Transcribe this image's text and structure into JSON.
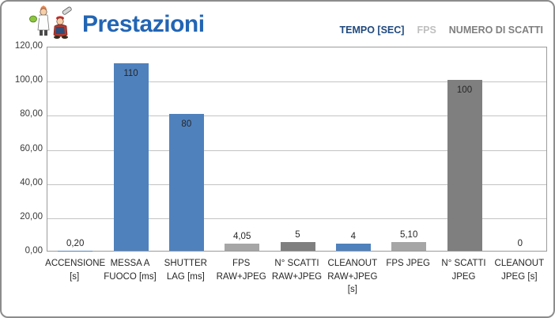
{
  "header": {
    "logo_name": "mascot-cartoon-logo",
    "title": "Prestazioni",
    "legend": [
      {
        "label": "TEMPO [SEC]",
        "color": "#1F497D"
      },
      {
        "label": "FPS",
        "color": "#BFBFBF"
      },
      {
        "label": "NUMERO DI SCATTI",
        "color": "#7F7F7F"
      }
    ]
  },
  "chart_data": {
    "type": "bar",
    "title": "Prestazioni",
    "categories": [
      "ACCENSIONE [s]",
      "MESSA A FUOCO [ms]",
      "SHUTTER LAG [ms]",
      "FPS RAW+JPEG",
      "N° SCATTI RAW+JPEG",
      "CLEANOUT RAW+JPEG [s]",
      "FPS JPEG",
      "N° SCATTI JPEG",
      "CLEANOUT JPEG [s]"
    ],
    "values": [
      0.2,
      110,
      80,
      4.05,
      5,
      4,
      5.1,
      100,
      0
    ],
    "value_labels": [
      "0,20",
      "110",
      "80",
      "4,05",
      "5",
      "4",
      "5,10",
      "100",
      "0"
    ],
    "bar_colors": [
      "#4F81BD",
      "#4F81BD",
      "#4F81BD",
      "#A6A6A6",
      "#7F7F7F",
      "#4F81BD",
      "#A6A6A6",
      "#7F7F7F",
      "#4F81BD"
    ],
    "series": [
      {
        "name": "TEMPO [SEC]",
        "color": "#4F81BD",
        "categories": [
          "ACCENSIONE [s]",
          "MESSA A FUOCO [ms]",
          "SHUTTER LAG [ms]",
          "CLEANOUT RAW+JPEG [s]",
          "CLEANOUT JPEG [s]"
        ],
        "values": [
          0.2,
          110,
          80,
          4,
          0
        ]
      },
      {
        "name": "FPS",
        "color": "#A6A6A6",
        "categories": [
          "FPS RAW+JPEG",
          "FPS JPEG"
        ],
        "values": [
          4.05,
          5.1
        ]
      },
      {
        "name": "NUMERO DI SCATTI",
        "color": "#7F7F7F",
        "categories": [
          "N° SCATTI RAW+JPEG",
          "N° SCATTI JPEG"
        ],
        "values": [
          5,
          100
        ]
      }
    ],
    "ylim": [
      0,
      120
    ],
    "ytick_values": [
      120,
      100,
      80,
      60,
      40,
      20,
      0
    ],
    "ytick_labels": [
      "120,00",
      "100,00",
      "80,00",
      "60,00",
      "40,00",
      "20,00",
      "0,00"
    ],
    "xlabel": "",
    "ylabel": "",
    "grid": true,
    "legend_position": "top-right"
  }
}
